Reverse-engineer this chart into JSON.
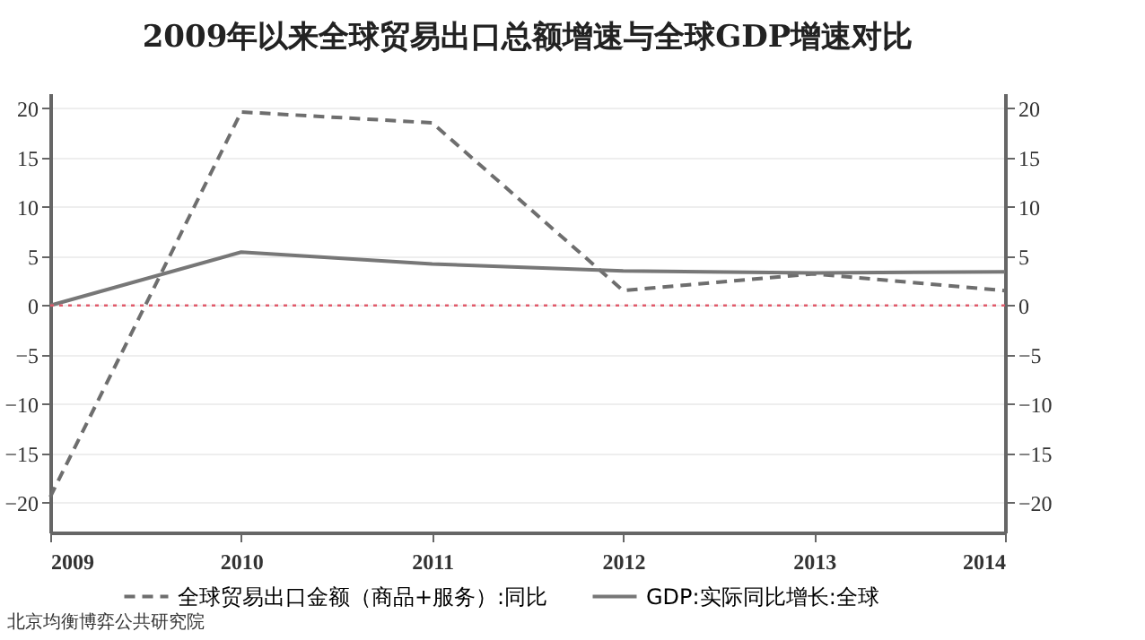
{
  "chart_data": {
    "type": "line",
    "title": "2009年以来全球贸易出口总额增速与全球GDP增速对比",
    "categories": [
      "2009",
      "2010",
      "2011",
      "2012",
      "2013",
      "2014"
    ],
    "series": [
      {
        "name": "全球贸易出口金额（商品+服务）:同比",
        "color": "#6e6e6e",
        "line_style": "dashed",
        "values": [
          -19.4,
          19.6,
          18.5,
          1.5,
          3.2,
          1.5
        ]
      },
      {
        "name": "GDP:实际同比增长:全球",
        "color": "#777777",
        "line_style": "solid",
        "values": [
          0,
          5.4,
          4.2,
          3.5,
          3.3,
          3.4
        ]
      }
    ],
    "ylim": [
      -23,
      21.5
    ],
    "yticks": [
      -20,
      -15,
      -10,
      -5,
      0,
      5,
      10,
      15,
      20
    ],
    "y2lim": [
      -23,
      21.5
    ],
    "y2ticks": [
      -20,
      -15,
      -10,
      -5,
      0,
      5,
      10,
      15,
      20
    ],
    "ref_lines": [
      {
        "axis": "y",
        "value": 0,
        "color": "#e05a6a",
        "line_style": "dotted"
      }
    ],
    "grid": "y",
    "legend": "bottom",
    "marker": "none",
    "annotations": [
      "北京均衡博弈公共研究院"
    ]
  }
}
